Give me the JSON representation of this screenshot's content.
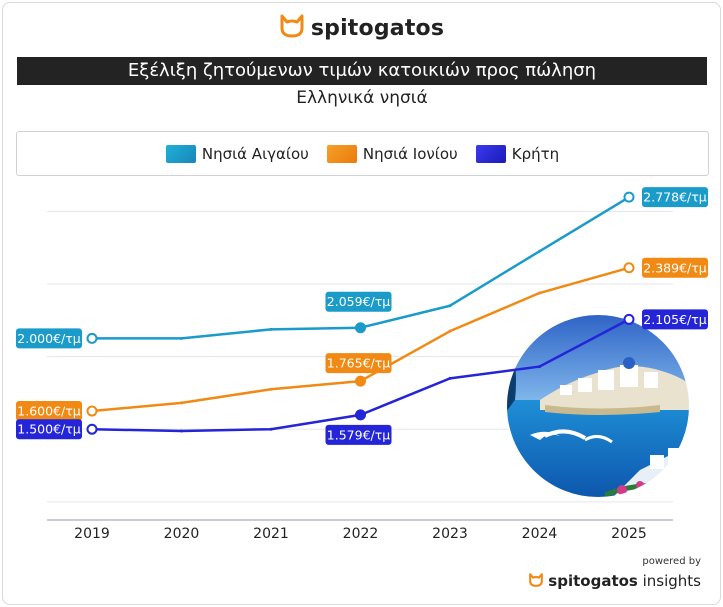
{
  "brand": "spitogatos",
  "title": "Εξέλιξη ζητούμενων τιμών κατοικιών προς πώληση",
  "subtitle": "Ελληνικά νησιά",
  "footer": {
    "powered_by": "powered by",
    "brand_bold": "spitogatos",
    "brand_light": " insights"
  },
  "colors": {
    "aegean": "#1a9bc9",
    "ionian": "#f08a14",
    "crete": "#2424d8",
    "frame": "#232323"
  },
  "icons": [
    "cat-logo-icon",
    "island-illustration"
  ],
  "chart_data": {
    "type": "line",
    "x": [
      "2019",
      "2020",
      "2021",
      "2022",
      "2023",
      "2024",
      "2025"
    ],
    "ylim": [
      1000,
      2900
    ],
    "grid": true,
    "legend_position": "top",
    "series": [
      {
        "name": "Νησιά Αιγαίου",
        "color": "#1a9bc9",
        "values": [
          2000,
          2000,
          2050,
          2059,
          2180,
          2480,
          2778
        ]
      },
      {
        "name": "Νησιά Ιονίου",
        "color": "#f08a14",
        "values": [
          1600,
          1645,
          1720,
          1765,
          2040,
          2250,
          2389
        ]
      },
      {
        "name": "Κρήτη",
        "color": "#2424d8",
        "values": [
          1500,
          1490,
          1500,
          1579,
          1780,
          1845,
          2105
        ]
      }
    ],
    "annotations": [
      {
        "series": 0,
        "index": 0,
        "text": "2.000€/τμ",
        "side": "left"
      },
      {
        "series": 1,
        "index": 0,
        "text": "1.600€/τμ",
        "side": "left"
      },
      {
        "series": 2,
        "index": 0,
        "text": "1.500€/τμ",
        "side": "left"
      },
      {
        "series": 0,
        "index": 3,
        "text": "2.059€/τμ",
        "side": "above"
      },
      {
        "series": 1,
        "index": 3,
        "text": "1.765€/τμ",
        "side": "above"
      },
      {
        "series": 2,
        "index": 3,
        "text": "1.579€/τμ",
        "side": "below"
      },
      {
        "series": 0,
        "index": 6,
        "text": "2.778€/τμ",
        "side": "right"
      },
      {
        "series": 1,
        "index": 6,
        "text": "2.389€/τμ",
        "side": "right"
      },
      {
        "series": 2,
        "index": 6,
        "text": "2.105€/τμ",
        "side": "right"
      }
    ]
  }
}
